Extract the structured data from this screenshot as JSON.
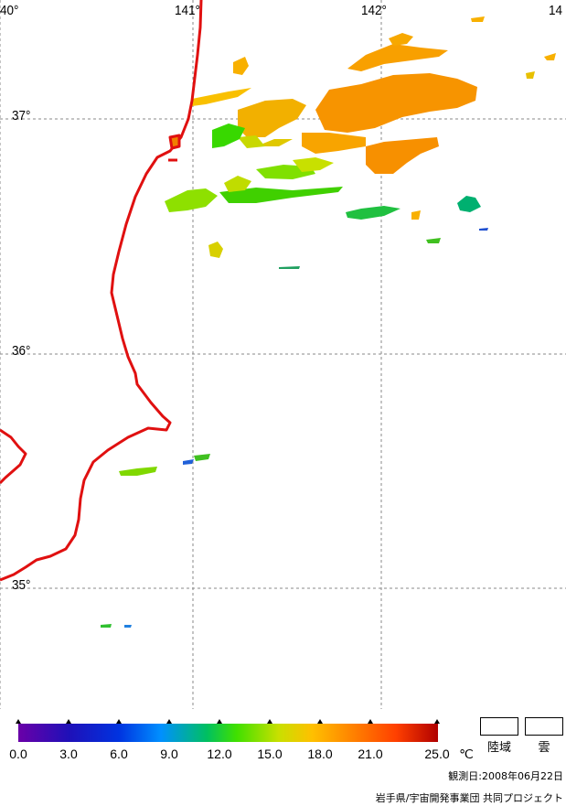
{
  "map": {
    "longitude_labels": [
      "40°",
      "141°",
      "142°",
      "14"
    ],
    "latitude_labels": [
      "37°",
      "36°",
      "35°"
    ]
  },
  "legend": {
    "ticks": [
      "0.0",
      "3.0",
      "6.0",
      "9.0",
      "12.0",
      "15.0",
      "18.0",
      "21.0",
      "25.0"
    ],
    "unit": "℃",
    "land_label": "陸域",
    "cloud_label": "雲"
  },
  "footer": {
    "observation_date": "観測日:2008年06月22日",
    "credit": "岩手県/宇宙開発事業団 共同プロジェクト"
  },
  "colors": {
    "coastline": "#e01010",
    "grid": "#888888"
  }
}
